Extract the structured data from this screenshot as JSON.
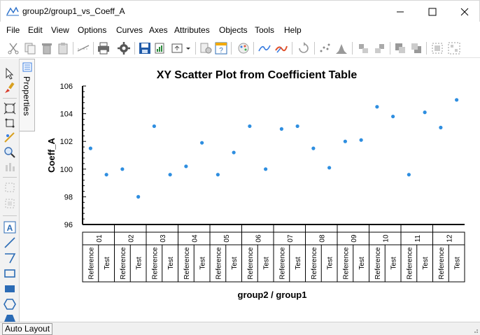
{
  "window": {
    "title": "group2/group1_vs_Coeff_A"
  },
  "menu": [
    "File",
    "Edit",
    "View",
    "Options",
    "Curves",
    "Axes",
    "Attributes",
    "Objects",
    "Tools",
    "Help"
  ],
  "side_panel": {
    "tab_label": "Properties"
  },
  "status": {
    "auto_layout": "Auto Layout"
  },
  "colors": {
    "point": "#2e8ee0",
    "axis": "#000000"
  },
  "chart_data": {
    "type": "scatter",
    "title": "XY Scatter Plot from Coefficient Table",
    "ylabel": "Coeff_A",
    "xlabel": "group2 / group1",
    "ylim": [
      96,
      106
    ],
    "yticks": [
      96,
      98,
      100,
      102,
      104,
      106
    ],
    "grid": false,
    "groups": [
      "01",
      "02",
      "03",
      "04",
      "05",
      "06",
      "07",
      "08",
      "09",
      "10",
      "11",
      "12"
    ],
    "subgroups": [
      "Reference",
      "Test"
    ],
    "points": [
      {
        "group": "01",
        "subgroup": "Reference",
        "values": [
          101.5
        ]
      },
      {
        "group": "01",
        "subgroup": "Test",
        "values": [
          99.6
        ]
      },
      {
        "group": "02",
        "subgroup": "Reference",
        "values": [
          100.0
        ]
      },
      {
        "group": "02",
        "subgroup": "Test",
        "values": [
          98.0
        ]
      },
      {
        "group": "03",
        "subgroup": "Reference",
        "values": [
          103.1
        ]
      },
      {
        "group": "03",
        "subgroup": "Test",
        "values": [
          99.6
        ]
      },
      {
        "group": "04",
        "subgroup": "Reference",
        "values": [
          100.2
        ]
      },
      {
        "group": "04",
        "subgroup": "Test",
        "values": [
          101.9
        ]
      },
      {
        "group": "05",
        "subgroup": "Reference",
        "values": [
          99.6
        ]
      },
      {
        "group": "05",
        "subgroup": "Test",
        "values": [
          101.2
        ]
      },
      {
        "group": "06",
        "subgroup": "Reference",
        "values": [
          103.1
        ]
      },
      {
        "group": "06",
        "subgroup": "Test",
        "values": [
          100.0
        ]
      },
      {
        "group": "07",
        "subgroup": "Reference",
        "values": [
          102.9
        ]
      },
      {
        "group": "07",
        "subgroup": "Test",
        "values": [
          103.1
        ]
      },
      {
        "group": "08",
        "subgroup": "Reference",
        "values": [
          101.5
        ]
      },
      {
        "group": "08",
        "subgroup": "Test",
        "values": [
          100.1
        ]
      },
      {
        "group": "09",
        "subgroup": "Reference",
        "values": [
          102.0
        ]
      },
      {
        "group": "09",
        "subgroup": "Test",
        "values": [
          102.1
        ]
      },
      {
        "group": "10",
        "subgroup": "Reference",
        "values": [
          104.5
        ]
      },
      {
        "group": "10",
        "subgroup": "Test",
        "values": [
          103.8
        ]
      },
      {
        "group": "11",
        "subgroup": "Reference",
        "values": [
          99.6
        ]
      },
      {
        "group": "11",
        "subgroup": "Test",
        "values": [
          104.1
        ]
      },
      {
        "group": "12",
        "subgroup": "Reference",
        "values": [
          103.0
        ]
      },
      {
        "group": "12",
        "subgroup": "Test",
        "values": [
          105.0
        ]
      }
    ]
  }
}
